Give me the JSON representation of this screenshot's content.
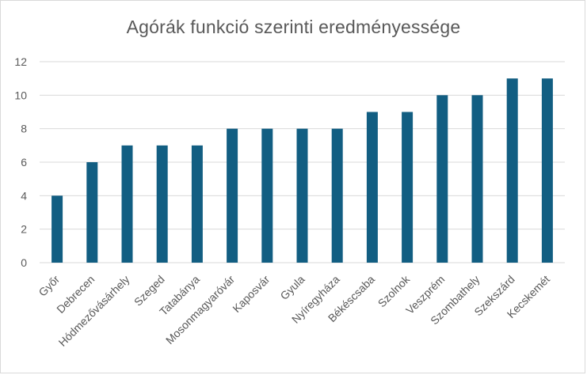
{
  "chart_data": {
    "type": "bar",
    "title": "Agórák funkció szerinti eredményessége",
    "xlabel": "",
    "ylabel": "",
    "categories": [
      "Győr",
      "Debrecen",
      "Hódmezővásárhely",
      "Szeged",
      "Tatabánya",
      "Mosonmagyaróvár",
      "Kaposvár",
      "Gyula",
      "Nyíregyháza",
      "Békéscsaba",
      "Szolnok",
      "Veszprém",
      "Szombathely",
      "Szekszárd",
      "Kecskemét"
    ],
    "values": [
      4,
      6,
      7,
      7,
      7,
      8,
      8,
      8,
      8,
      9,
      9,
      10,
      10,
      11,
      11
    ],
    "ylim": [
      0,
      12
    ],
    "yticks": [
      0,
      2,
      4,
      6,
      8,
      10,
      12
    ],
    "grid": true,
    "legend": "none",
    "bar_color": "#125E82"
  }
}
